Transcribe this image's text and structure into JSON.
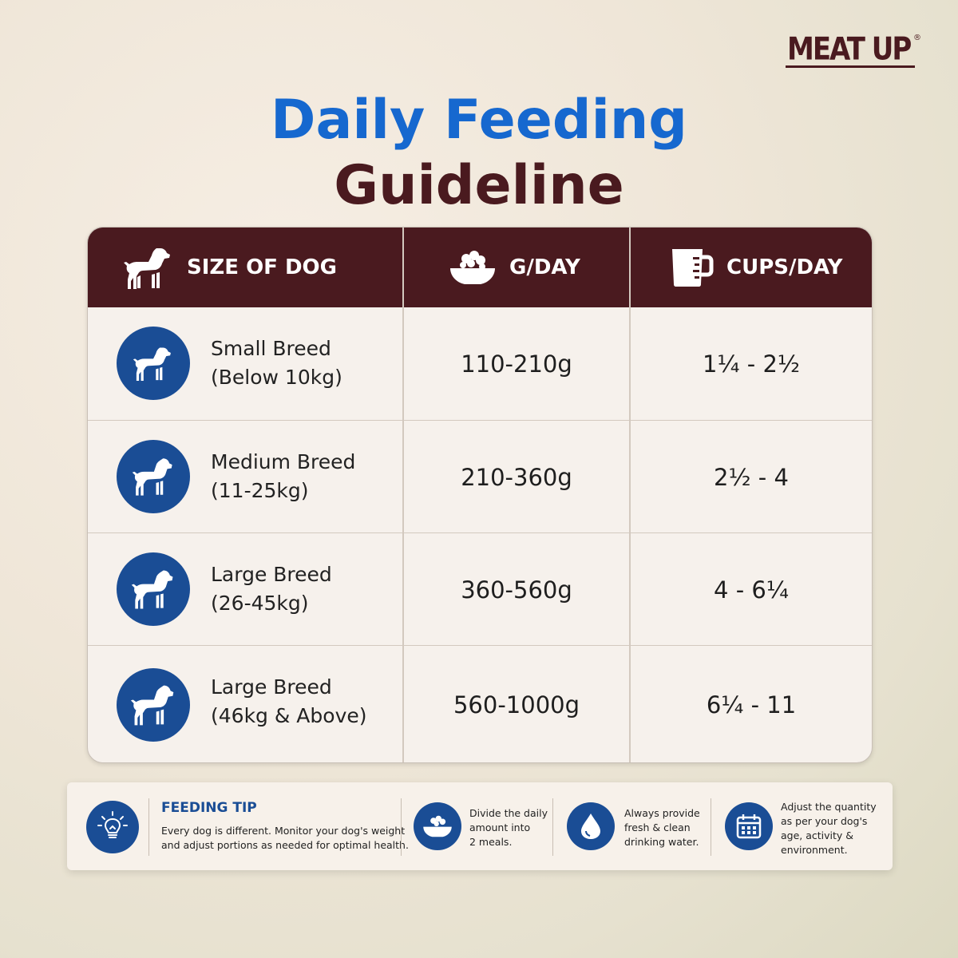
{
  "brand": {
    "name": "MEAT UP",
    "reg": "®",
    "color": "#4a1a1f"
  },
  "title": {
    "line1": "Daily Feeding",
    "line2": "Guideline",
    "color1": "#1668cf",
    "color2": "#4a1a1f"
  },
  "table": {
    "headers": [
      {
        "label": "SIZE OF DOG",
        "icon": "dog-icon"
      },
      {
        "label": "G/DAY",
        "icon": "food-bowl-icon"
      },
      {
        "label": "CUPS/DAY",
        "icon": "measuring-cup-icon"
      }
    ],
    "rows": [
      {
        "name": "Small Breed",
        "range": "(Below 10kg)",
        "grams": "110-210g",
        "cups": "1¼ - 2½"
      },
      {
        "name": "Medium Breed",
        "range": "(11-25kg)",
        "grams": "210-360g",
        "cups": "2½ - 4"
      },
      {
        "name": "Large Breed",
        "range": "(26-45kg)",
        "grams": "360-560g",
        "cups": "4 - 6¼"
      },
      {
        "name": "Large Breed",
        "range": "(46kg & Above)",
        "grams": "560-1000g",
        "cups": "6¼ - 11"
      }
    ],
    "header_color": "#4a1a1f",
    "badge_color": "#1a4d95"
  },
  "tips": {
    "title": "FEEDING TIP",
    "main_line1": "Every dog is different. Monitor your dog's weight",
    "main_line2": "and adjust portions as needed for optimal health.",
    "meals": [
      "Divide the daily",
      "amount into",
      "2 meals."
    ],
    "water": [
      "Always provide",
      "fresh & clean",
      "drinking water."
    ],
    "adjust": [
      "Adjust the quantity",
      "as per your dog's",
      "age, activity &",
      "environment."
    ]
  }
}
